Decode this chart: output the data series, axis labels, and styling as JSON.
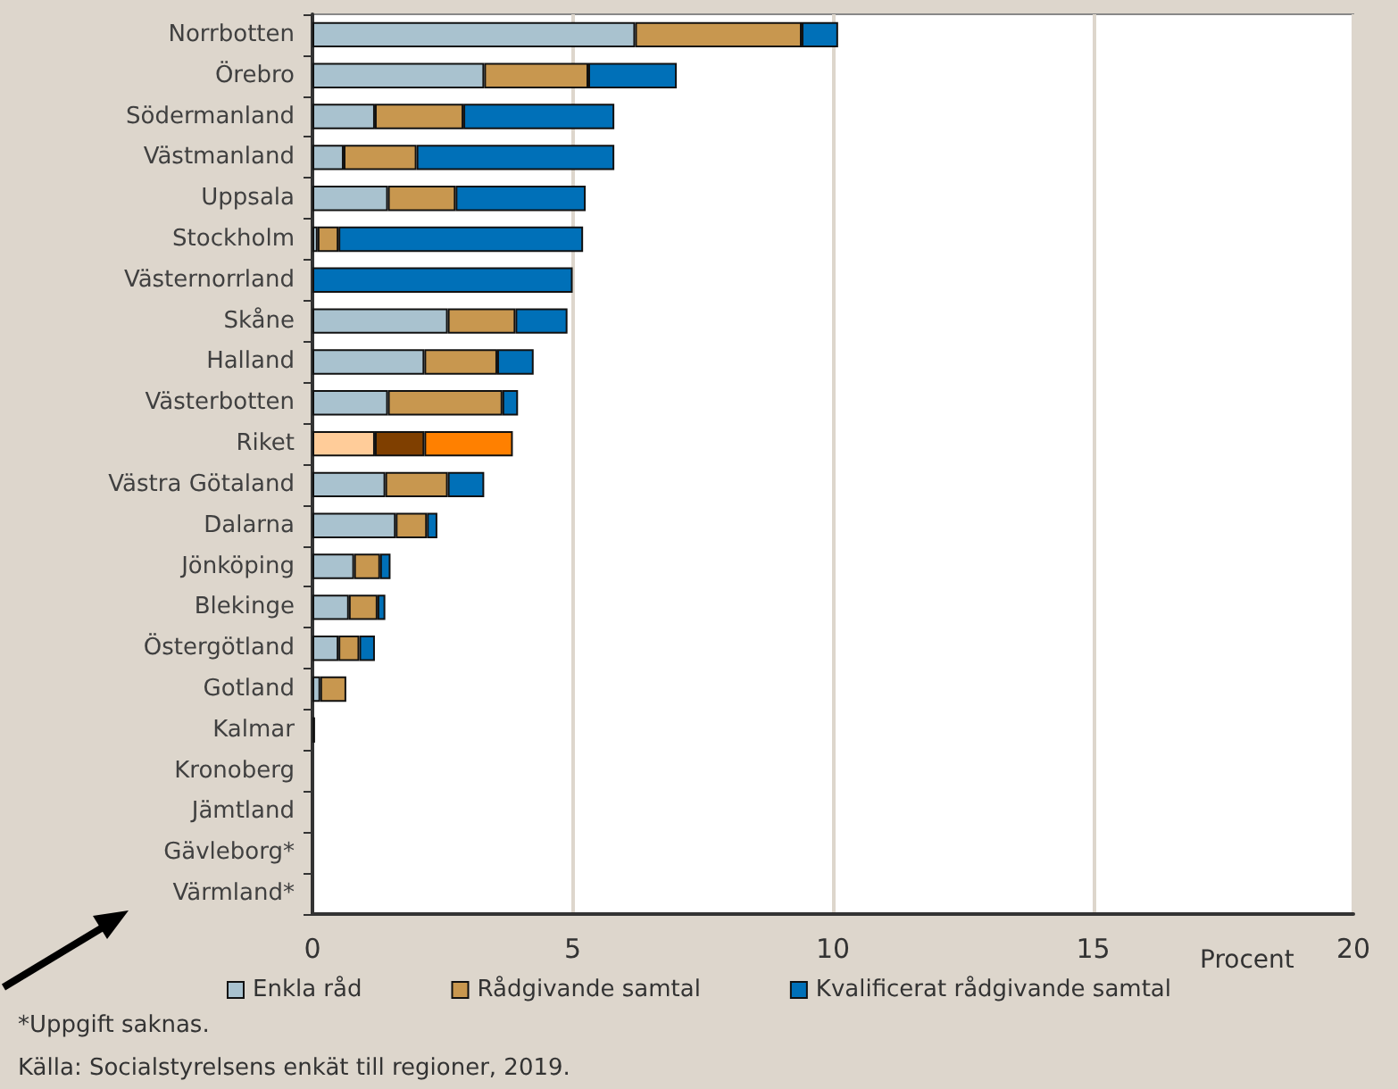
{
  "chart_data": {
    "type": "bar",
    "orientation": "horizontal",
    "stacked": true,
    "xlabel": "Procent",
    "categories": [
      "Norrbotten",
      "Örebro",
      "Södermanland",
      "Västmanland",
      "Uppsala",
      "Stockholm",
      "Västernorrland",
      "Skåne",
      "Halland",
      "Västerbotten",
      "Riket",
      "Västra Götaland",
      "Dalarna",
      "Jönköping",
      "Blekinge",
      "Östergötland",
      "Gotland",
      "Kalmar",
      "Kronoberg",
      "Jämtland",
      "Gävleborg*",
      "Värmland*"
    ],
    "series": [
      {
        "name": "Enkla råd",
        "color": "#a9c2cf",
        "colors": [
          "#a9c2cf",
          "#a9c2cf",
          "#a9c2cf",
          "#a9c2cf",
          "#a9c2cf",
          "#a9c2cf",
          "#a9c2cf",
          "#a9c2cf",
          "#a9c2cf",
          "#a9c2cf",
          "#ffcc99",
          "#a9c2cf",
          "#a9c2cf",
          "#a9c2cf",
          "#a9c2cf",
          "#a9c2cf",
          "#a9c2cf",
          "#a9c2cf",
          "#a9c2cf",
          "#a9c2cf",
          "#a9c2cf",
          "#a9c2cf"
        ],
        "values": [
          6.2,
          3.3,
          1.2,
          0.6,
          1.45,
          0.1,
          0,
          2.6,
          2.15,
          1.45,
          1.2,
          1.4,
          1.6,
          0.8,
          0.7,
          0.5,
          0.15,
          0,
          0,
          0,
          null,
          null
        ]
      },
      {
        "name": "Rådgivande samtal",
        "color": "#c8974f",
        "colors": [
          "#c8974f",
          "#c8974f",
          "#c8974f",
          "#c8974f",
          "#c8974f",
          "#c8974f",
          "#c8974f",
          "#c8974f",
          "#c8974f",
          "#c8974f",
          "#7f3f00",
          "#c8974f",
          "#c8974f",
          "#c8974f",
          "#c8974f",
          "#c8974f",
          "#c8974f",
          "#c8974f",
          "#c8974f",
          "#c8974f",
          "#c8974f",
          "#c8974f"
        ],
        "values": [
          3.2,
          2.0,
          1.7,
          1.4,
          1.3,
          0.4,
          0,
          1.3,
          1.4,
          2.2,
          0.95,
          1.2,
          0.6,
          0.5,
          0.55,
          0.4,
          0.5,
          0,
          0,
          0,
          null,
          null
        ]
      },
      {
        "name": "Kvalificerat rådgivande samtal",
        "color": "#0070b8",
        "colors": [
          "#0070b8",
          "#0070b8",
          "#0070b8",
          "#0070b8",
          "#0070b8",
          "#0070b8",
          "#0070b8",
          "#0070b8",
          "#0070b8",
          "#0070b8",
          "#ff8000",
          "#0070b8",
          "#0070b8",
          "#0070b8",
          "#0070b8",
          "#0070b8",
          "#0070b8",
          "#0070b8",
          "#0070b8",
          "#0070b8",
          "#0070b8",
          "#0070b8"
        ],
        "values": [
          0.7,
          1.7,
          2.9,
          3.8,
          2.5,
          4.7,
          5.0,
          1.0,
          0.7,
          0.3,
          1.7,
          0.7,
          0.2,
          0.2,
          0.15,
          0.3,
          0,
          0.05,
          0,
          0,
          null,
          null
        ]
      }
    ],
    "xlim": [
      0,
      20
    ],
    "xticks": [
      0,
      5,
      10,
      15,
      20
    ],
    "grid": "x",
    "legend": "bottom",
    "annotations": [
      "*Uppgift saknas.",
      "Källa: Socialstyrelsens enkät till regioner, 2019."
    ]
  }
}
